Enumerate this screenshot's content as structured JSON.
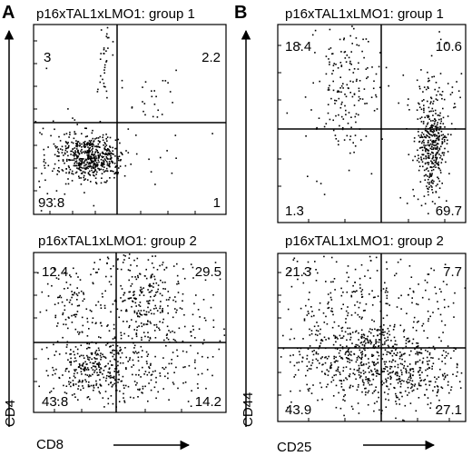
{
  "panels": [
    {
      "letter": "A",
      "xlabel": "CD8",
      "ylabel": "CD4"
    },
    {
      "letter": "B",
      "xlabel": "CD25",
      "ylabel": "CD44"
    }
  ],
  "chart_data": [
    {
      "type": "scatter",
      "title": "p16xTAL1xLMO1: group 1",
      "xlabel": "CD8",
      "ylabel": "CD4",
      "quadrants": {
        "top_left": "3",
        "top_right": "2.2",
        "bottom_left": "93.8",
        "bottom_right": "1"
      }
    },
    {
      "type": "scatter",
      "title": "p16xTAL1xLMO1: group 2",
      "xlabel": "CD8",
      "ylabel": "CD4",
      "quadrants": {
        "top_left": "12.4",
        "top_right": "29.5",
        "bottom_left": "43.8",
        "bottom_right": "14.2"
      }
    },
    {
      "type": "scatter",
      "title": "p16xTAL1xLMO1: group 1",
      "xlabel": "CD25",
      "ylabel": "CD44",
      "quadrants": {
        "top_left": "18.4",
        "top_right": "10.6",
        "bottom_left": "1.3",
        "bottom_right": "69.7"
      }
    },
    {
      "type": "scatter",
      "title": "p16xTAL1xLMO1: group 2",
      "xlabel": "CD25",
      "ylabel": "CD44",
      "quadrants": {
        "top_left": "21.3",
        "top_right": "7.7",
        "bottom_left": "43.9",
        "bottom_right": "27.1"
      }
    }
  ]
}
